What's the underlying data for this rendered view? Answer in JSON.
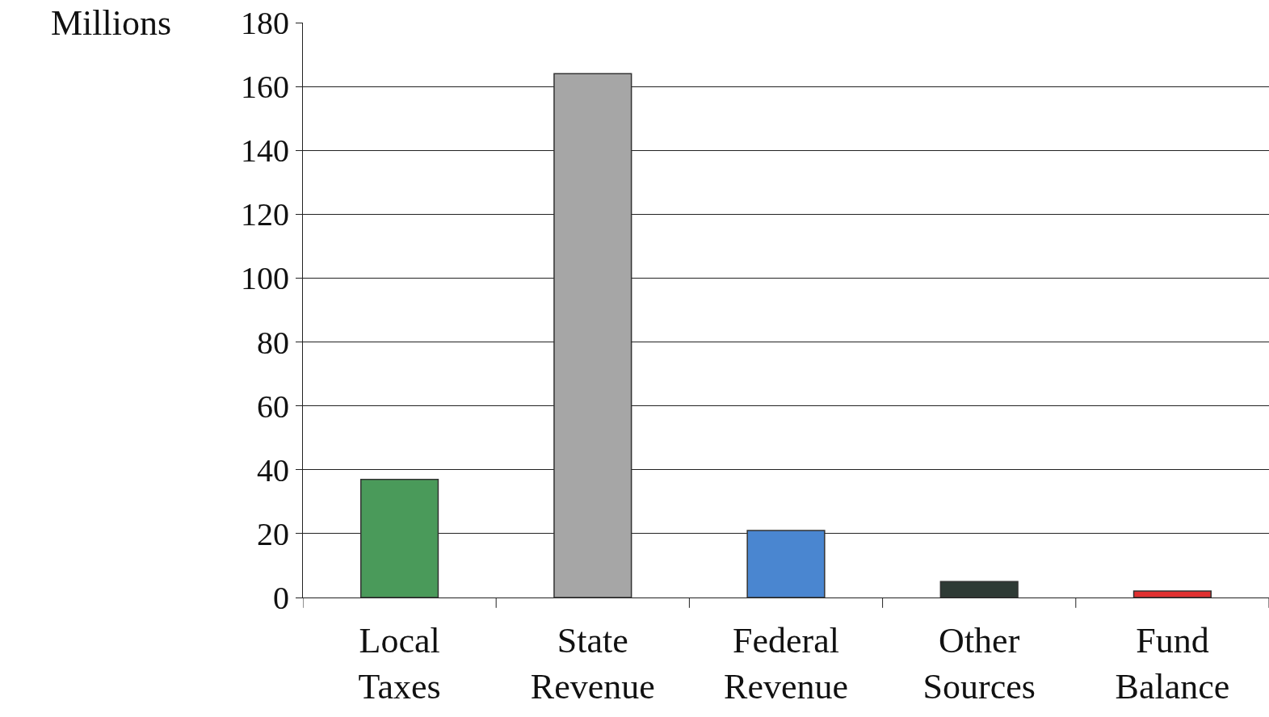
{
  "chart_data": {
    "type": "bar",
    "ylabel": "Millions",
    "categories": [
      "Local Taxes",
      "State Revenue",
      "Federal Revenue",
      "Other Sources",
      "Fund Balance"
    ],
    "values": [
      37,
      164,
      21,
      5,
      2
    ],
    "colors": [
      "#4a9a5a",
      "#a6a6a6",
      "#4a86d0",
      "#2e3a35",
      "#e03030"
    ],
    "ylim": [
      0,
      180
    ],
    "yticks": [
      0,
      20,
      40,
      60,
      80,
      100,
      120,
      140,
      160,
      180
    ],
    "grid": "y"
  }
}
